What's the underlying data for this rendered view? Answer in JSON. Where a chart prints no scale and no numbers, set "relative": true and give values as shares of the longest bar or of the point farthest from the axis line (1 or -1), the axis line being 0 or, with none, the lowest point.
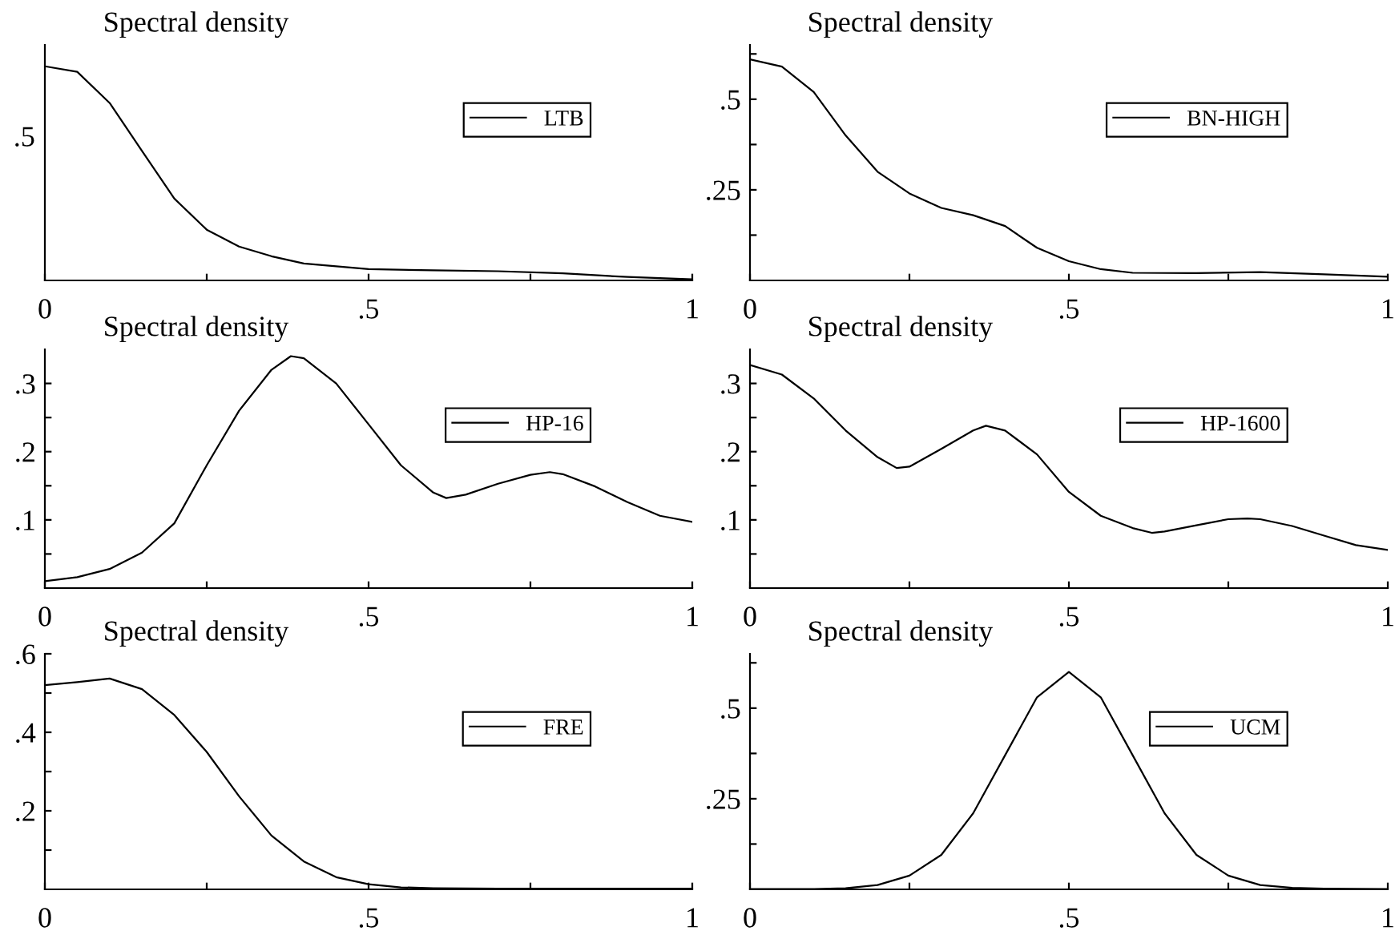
{
  "chart_data": [
    {
      "type": "line",
      "title": "Spectral density",
      "legend": "top right",
      "grid": false,
      "xlim": [
        0,
        1
      ],
      "relative": true,
      "annotations": [
        ".5"
      ],
      "xticks": [
        {
          "value": 0,
          "label": "0"
        },
        {
          "value": 0.25,
          "label": null
        },
        {
          "value": 0.5,
          "label": ".5"
        },
        {
          "value": 0.75,
          "label": null
        },
        {
          "value": 1,
          "label": "1"
        }
      ],
      "x": [
        0,
        0.05,
        0.1,
        0.15,
        0.2,
        0.25,
        0.3,
        0.35,
        0.4,
        0.5,
        0.6,
        0.7,
        0.8,
        0.9,
        1
      ],
      "series": [
        {
          "name": "LTB",
          "color": "#000000",
          "values": [
            1,
            0.974,
            0.829,
            0.605,
            0.382,
            0.237,
            0.158,
            0.113,
            0.079,
            0.053,
            0.047,
            0.043,
            0.033,
            0.016,
            0.005
          ]
        }
      ]
    },
    {
      "type": "line",
      "title": "Spectral density",
      "legend": "top right",
      "grid": false,
      "xlim": [
        0,
        1
      ],
      "ylim": [
        0,
        0.65
      ],
      "xticks": [
        {
          "value": 0,
          "label": "0"
        },
        {
          "value": 0.25,
          "label": null
        },
        {
          "value": 0.5,
          "label": ".5"
        },
        {
          "value": 0.75,
          "label": null
        },
        {
          "value": 1,
          "label": "1"
        }
      ],
      "yticks": [
        {
          "value": 0.125,
          "label": null
        },
        {
          "value": 0.25,
          "label": ".25"
        },
        {
          "value": 0.375,
          "label": null
        },
        {
          "value": 0.5,
          "label": ".5"
        },
        {
          "value": 0.625,
          "label": null
        }
      ],
      "x": [
        0,
        0.05,
        0.1,
        0.15,
        0.2,
        0.25,
        0.3,
        0.35,
        0.4,
        0.45,
        0.5,
        0.55,
        0.6,
        0.7,
        0.8,
        0.9,
        1
      ],
      "series": [
        {
          "name": "BN-HIGH",
          "color": "#000000",
          "values": [
            0.61,
            0.59,
            0.52,
            0.4,
            0.3,
            0.24,
            0.2,
            0.18,
            0.15,
            0.09,
            0.053,
            0.031,
            0.021,
            0.02,
            0.023,
            0.017,
            0.01
          ]
        }
      ]
    },
    {
      "type": "line",
      "title": "Spectral density",
      "legend": "top right",
      "grid": false,
      "xlim": [
        0,
        1
      ],
      "ylim": [
        0,
        0.35
      ],
      "xticks": [
        {
          "value": 0,
          "label": "0"
        },
        {
          "value": 0.25,
          "label": null
        },
        {
          "value": 0.5,
          "label": ".5"
        },
        {
          "value": 0.75,
          "label": null
        },
        {
          "value": 1,
          "label": "1"
        }
      ],
      "yticks": [
        {
          "value": 0.05,
          "label": null
        },
        {
          "value": 0.1,
          "label": ".1"
        },
        {
          "value": 0.15,
          "label": null
        },
        {
          "value": 0.2,
          "label": ".2"
        },
        {
          "value": 0.25,
          "label": null
        },
        {
          "value": 0.3,
          "label": ".3"
        }
      ],
      "x": [
        0,
        0.05,
        0.1,
        0.15,
        0.2,
        0.25,
        0.3,
        0.35,
        0.38,
        0.4,
        0.45,
        0.5,
        0.55,
        0.6,
        0.62,
        0.65,
        0.7,
        0.75,
        0.78,
        0.8,
        0.85,
        0.9,
        0.95,
        1
      ],
      "series": [
        {
          "name": "HP-16",
          "color": "#000000",
          "values": [
            0.01,
            0.016,
            0.028,
            0.052,
            0.095,
            0.18,
            0.26,
            0.32,
            0.34,
            0.337,
            0.3,
            0.24,
            0.18,
            0.14,
            0.132,
            0.137,
            0.153,
            0.166,
            0.17,
            0.167,
            0.149,
            0.126,
            0.106,
            0.097
          ]
        }
      ]
    },
    {
      "type": "line",
      "title": "Spectral density",
      "legend": "top right",
      "grid": false,
      "xlim": [
        0,
        1
      ],
      "ylim": [
        0,
        0.35
      ],
      "xticks": [
        {
          "value": 0,
          "label": "0"
        },
        {
          "value": 0.25,
          "label": null
        },
        {
          "value": 0.5,
          "label": ".5"
        },
        {
          "value": 0.75,
          "label": null
        },
        {
          "value": 1,
          "label": "1"
        }
      ],
      "yticks": [
        {
          "value": 0.05,
          "label": null
        },
        {
          "value": 0.1,
          "label": ".1"
        },
        {
          "value": 0.15,
          "label": null
        },
        {
          "value": 0.2,
          "label": ".2"
        },
        {
          "value": 0.25,
          "label": null
        },
        {
          "value": 0.3,
          "label": ".3"
        }
      ],
      "x": [
        0,
        0.05,
        0.1,
        0.15,
        0.2,
        0.23,
        0.25,
        0.3,
        0.35,
        0.37,
        0.4,
        0.45,
        0.5,
        0.55,
        0.6,
        0.63,
        0.65,
        0.7,
        0.75,
        0.78,
        0.8,
        0.85,
        0.9,
        0.95,
        1
      ],
      "series": [
        {
          "name": "HP-1600",
          "color": "#000000",
          "values": [
            0.327,
            0.313,
            0.278,
            0.231,
            0.192,
            0.176,
            0.178,
            0.204,
            0.231,
            0.238,
            0.231,
            0.196,
            0.141,
            0.106,
            0.088,
            0.081,
            0.083,
            0.092,
            0.101,
            0.102,
            0.101,
            0.091,
            0.077,
            0.063,
            0.056
          ]
        }
      ]
    },
    {
      "type": "line",
      "title": "Spectral density",
      "legend": "top right",
      "grid": false,
      "xlim": [
        0,
        1
      ],
      "ylim": [
        0,
        0.6
      ],
      "xticks": [
        {
          "value": 0,
          "label": "0"
        },
        {
          "value": 0.25,
          "label": null
        },
        {
          "value": 0.5,
          "label": ".5"
        },
        {
          "value": 0.75,
          "label": null
        },
        {
          "value": 1,
          "label": "1"
        }
      ],
      "yticks": [
        {
          "value": 0.1,
          "label": null
        },
        {
          "value": 0.2,
          "label": ".2"
        },
        {
          "value": 0.3,
          "label": null
        },
        {
          "value": 0.4,
          "label": ".4"
        },
        {
          "value": 0.5,
          "label": null
        },
        {
          "value": 0.6,
          "label": ".6"
        }
      ],
      "x": [
        0,
        0.05,
        0.1,
        0.15,
        0.2,
        0.25,
        0.3,
        0.35,
        0.4,
        0.45,
        0.5,
        0.55,
        0.6,
        0.7,
        0.8,
        0.9,
        1
      ],
      "series": [
        {
          "name": "FRE",
          "color": "#000000",
          "values": [
            0.52,
            0.528,
            0.537,
            0.51,
            0.444,
            0.35,
            0.237,
            0.137,
            0.071,
            0.031,
            0.013,
            0.005,
            0.003,
            0.002,
            0.002,
            0.002,
            0.002
          ]
        }
      ]
    },
    {
      "type": "line",
      "title": "Spectral density",
      "legend": "top right",
      "grid": false,
      "xlim": [
        0,
        1
      ],
      "ylim": [
        0,
        0.65
      ],
      "xticks": [
        {
          "value": 0,
          "label": "0"
        },
        {
          "value": 0.25,
          "label": null
        },
        {
          "value": 0.5,
          "label": ".5"
        },
        {
          "value": 0.75,
          "label": null
        },
        {
          "value": 1,
          "label": "1"
        }
      ],
      "yticks": [
        {
          "value": 0.125,
          "label": null
        },
        {
          "value": 0.25,
          "label": ".25"
        },
        {
          "value": 0.375,
          "label": null
        },
        {
          "value": 0.5,
          "label": ".5"
        },
        {
          "value": 0.625,
          "label": null
        }
      ],
      "x": [
        0,
        0.1,
        0.15,
        0.2,
        0.25,
        0.3,
        0.35,
        0.4,
        0.45,
        0.5,
        0.55,
        0.6,
        0.65,
        0.7,
        0.75,
        0.8,
        0.85,
        0.9,
        1
      ],
      "series": [
        {
          "name": "UCM",
          "color": "#000000",
          "values": [
            0.001,
            0.001,
            0.003,
            0.012,
            0.038,
            0.095,
            0.21,
            0.37,
            0.53,
            0.6,
            0.53,
            0.37,
            0.21,
            0.095,
            0.038,
            0.012,
            0.004,
            0.002,
            0.001
          ]
        }
      ]
    }
  ]
}
